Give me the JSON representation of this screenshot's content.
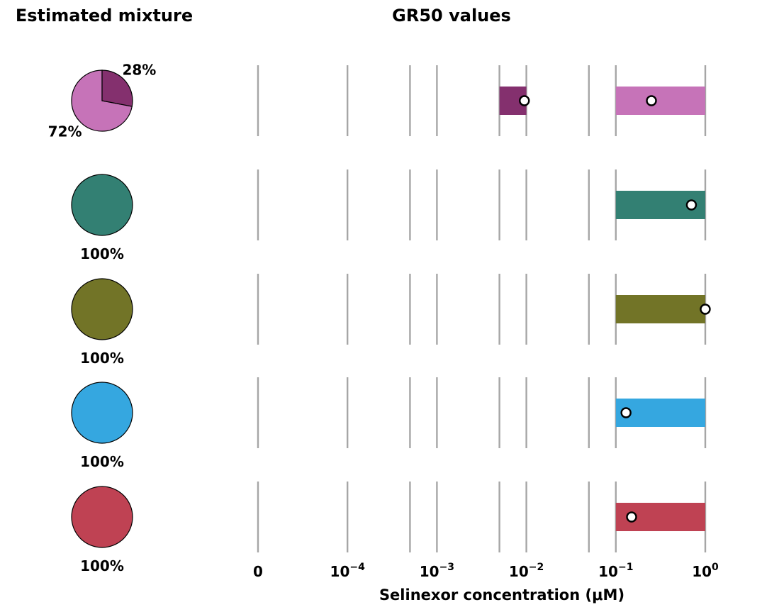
{
  "titles": {
    "left": "Estimated mixture",
    "right": "GR50 values"
  },
  "chart_data": [
    {
      "type": "pie",
      "title": "Estimated mixture",
      "rows": [
        {
          "slices": [
            {
              "value": 72,
              "label": "72%",
              "color": "#C673B8"
            },
            {
              "value": 28,
              "label": "28%",
              "color": "#84306E"
            }
          ]
        },
        {
          "slices": [
            {
              "value": 100,
              "label": "100%",
              "color": "#338073"
            }
          ]
        },
        {
          "slices": [
            {
              "value": 100,
              "label": "100%",
              "color": "#727427"
            }
          ]
        },
        {
          "slices": [
            {
              "value": 100,
              "label": "100%",
              "color": "#35A7E0"
            }
          ]
        },
        {
          "slices": [
            {
              "value": 100,
              "label": "100%",
              "color": "#BF4253"
            }
          ]
        }
      ]
    },
    {
      "type": "range",
      "title": "GR50 values",
      "xlabel": "Selinexor concentration (μM)",
      "x_scale": "symlog",
      "xlim": [
        0,
        1
      ],
      "tick_labels": [
        {
          "value": 0,
          "label": "0"
        },
        {
          "value": 0.0001,
          "base": "10",
          "exp": "−4"
        },
        {
          "value": 0.001,
          "base": "10",
          "exp": "−3"
        },
        {
          "value": 0.01,
          "base": "10",
          "exp": "−2"
        },
        {
          "value": 0.1,
          "base": "10",
          "exp": "−1"
        },
        {
          "value": 1,
          "base": "10",
          "exp": "0"
        }
      ],
      "gridlines": [
        0,
        0.0001,
        0.0005,
        0.001,
        0.005,
        0.01,
        0.05,
        0.1,
        1
      ],
      "rows": [
        {
          "ranges": [
            {
              "from": 0.005,
              "to": 0.01,
              "color": "#84306E",
              "gr50": 0.0095
            },
            {
              "from": 0.1,
              "to": 1,
              "color": "#C673B8",
              "gr50": 0.25
            }
          ]
        },
        {
          "ranges": [
            {
              "from": 0.1,
              "to": 1,
              "color": "#338073",
              "gr50": 0.7
            }
          ]
        },
        {
          "ranges": [
            {
              "from": 0.1,
              "to": 1,
              "color": "#727427",
              "gr50": 1.0
            }
          ]
        },
        {
          "ranges": [
            {
              "from": 0.1,
              "to": 1,
              "color": "#35A7E0",
              "gr50": 0.13
            }
          ]
        },
        {
          "ranges": [
            {
              "from": 0.1,
              "to": 1,
              "color": "#BF4253",
              "gr50": 0.15
            }
          ]
        }
      ]
    }
  ]
}
